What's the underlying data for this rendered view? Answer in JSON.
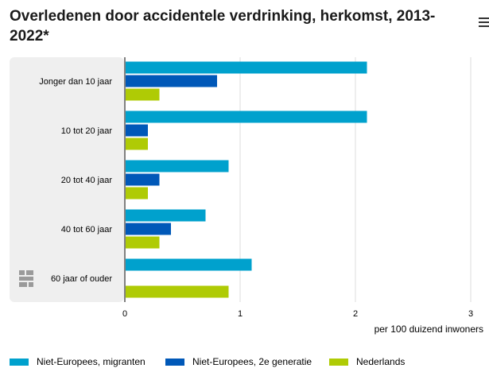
{
  "title": "Overledenen door accidentele verdrinking, herkomst, 2013-2022*",
  "menu_icon": "hamburger-menu-icon",
  "logo_icon": "cbs-logo-icon",
  "chart_data": {
    "type": "bar",
    "orientation": "horizontal",
    "title": "Overledenen door accidentele verdrinking, herkomst, 2013-2022*",
    "xlabel": "per 100 duizend inwoners",
    "ylabel": "",
    "xlim": [
      0,
      3
    ],
    "x_ticks": [
      "0",
      "1",
      "2",
      "3"
    ],
    "grid": true,
    "legend_position": "bottom",
    "categories": [
      "Jonger dan 10 jaar",
      "10 tot 20 jaar",
      "20 tot 40 jaar",
      "40 tot 60 jaar",
      "60 jaar of ouder"
    ],
    "series": [
      {
        "name": "Niet-Europees, migranten",
        "color": "#00a1cd",
        "values": [
          2.1,
          2.1,
          0.9,
          0.7,
          1.1
        ]
      },
      {
        "name": "Niet-Europees, 2e generatie",
        "color": "#0058b8",
        "values": [
          0.8,
          0.2,
          0.3,
          0.4,
          null
        ]
      },
      {
        "name": "Nederlands",
        "color": "#afcb05",
        "values": [
          0.3,
          0.2,
          0.2,
          0.3,
          0.9
        ]
      }
    ]
  }
}
